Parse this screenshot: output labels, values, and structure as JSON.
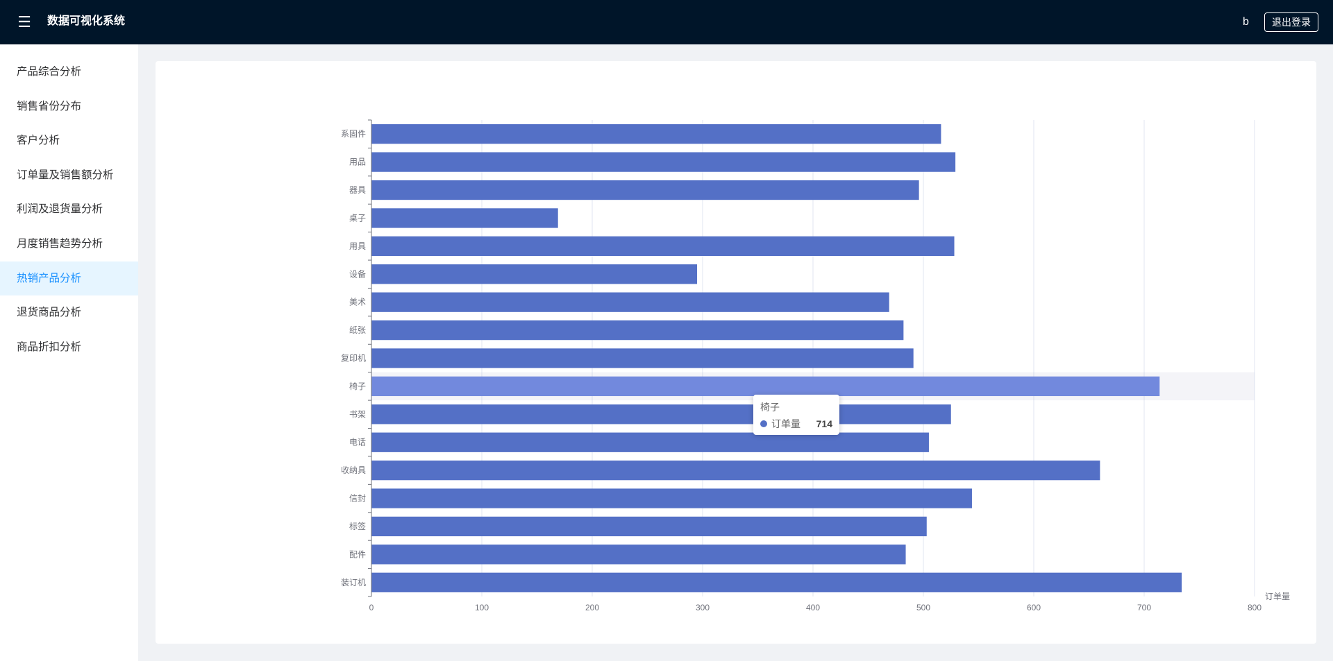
{
  "header": {
    "menu_icon": "hamburger-icon",
    "title": "数据可视化系统",
    "username": "b",
    "logout_label": "退出登录"
  },
  "sidebar": {
    "items": [
      {
        "label": "产品综合分析",
        "active": false
      },
      {
        "label": "销售省份分布",
        "active": false
      },
      {
        "label": "客户分析",
        "active": false
      },
      {
        "label": "订单量及销售额分析",
        "active": false
      },
      {
        "label": "利润及退货量分析",
        "active": false
      },
      {
        "label": "月度销售趋势分析",
        "active": false
      },
      {
        "label": "热销产品分析",
        "active": true
      },
      {
        "label": "退货商品分析",
        "active": false
      },
      {
        "label": "商品折扣分析",
        "active": false
      }
    ]
  },
  "colors": {
    "header_bg": "#001529",
    "accent": "#1890ff",
    "bar": "#5470c6",
    "bar_highlight": "#7289dd"
  },
  "chart_data": {
    "type": "bar",
    "orientation": "horizontal",
    "categories": [
      "系固件",
      "用品",
      "器具",
      "桌子",
      "用具",
      "设备",
      "美术",
      "纸张",
      "复印机",
      "椅子",
      "书架",
      "电话",
      "收纳具",
      "信封",
      "标签",
      "配件",
      "装订机"
    ],
    "series": [
      {
        "name": "订单量",
        "values": [
          516,
          529,
          496,
          169,
          528,
          295,
          469,
          482,
          491,
          714,
          525,
          505,
          660,
          544,
          503,
          484,
          734
        ]
      }
    ],
    "xlabel": "订单量",
    "ylabel": "",
    "xlim": [
      0,
      800
    ],
    "xticks": [
      0,
      100,
      200,
      300,
      400,
      500,
      600,
      700,
      800
    ],
    "grid": "vertical",
    "highlighted_index": 9
  },
  "tooltip": {
    "title": "椅子",
    "series_name": "订单量",
    "value": "714"
  }
}
